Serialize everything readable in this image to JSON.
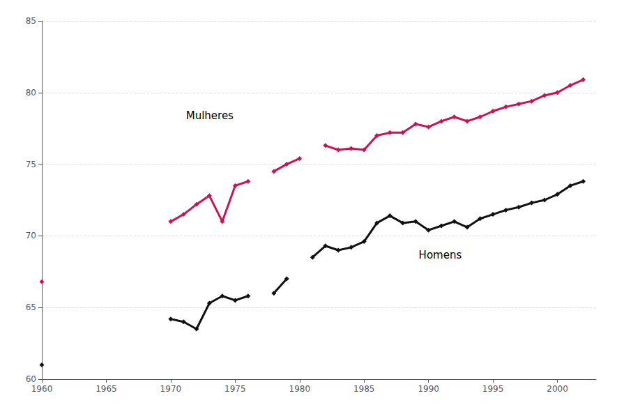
{
  "chart_data": {
    "type": "line",
    "marker": "diamond",
    "series": [
      {
        "name": "Mulheres",
        "color": "#cc1155",
        "x": [
          1960,
          null,
          1970,
          1971,
          1972,
          1973,
          1974,
          1975,
          1976,
          null,
          1978,
          1979,
          1980,
          null,
          1982,
          1983,
          1984,
          1985,
          1986,
          1987,
          1988,
          1989,
          1990,
          1991,
          1992,
          1993,
          1994,
          1995,
          1996,
          1997,
          1998,
          1999,
          2000,
          2001,
          2002
        ],
        "values": [
          66.8,
          null,
          71.0,
          71.5,
          72.2,
          72.8,
          71.0,
          73.5,
          73.8,
          null,
          74.5,
          75.0,
          75.4,
          null,
          76.3,
          76.0,
          76.1,
          76.0,
          77.0,
          77.2,
          77.2,
          77.8,
          77.6,
          78.0,
          78.3,
          78.0,
          78.3,
          78.7,
          79.0,
          79.2,
          79.4,
          79.8,
          80.0,
          80.5,
          80.9
        ]
      },
      {
        "name": "Homens",
        "color": "#111111",
        "x": [
          1960,
          null,
          1970,
          1971,
          1972,
          1973,
          1974,
          1975,
          1976,
          null,
          1978,
          1979,
          null,
          1981,
          1982,
          1983,
          1984,
          1985,
          1986,
          1987,
          1988,
          1989,
          1990,
          1991,
          1992,
          1993,
          1994,
          1995,
          1996,
          1997,
          1998,
          1999,
          2000,
          2001,
          2002
        ],
        "values": [
          61.0,
          null,
          64.2,
          64.0,
          63.5,
          65.3,
          65.8,
          65.5,
          65.8,
          null,
          66.0,
          67.0,
          null,
          68.5,
          69.3,
          69.0,
          69.2,
          69.6,
          70.9,
          71.4,
          70.9,
          71.0,
          70.4,
          70.7,
          71.0,
          70.6,
          71.2,
          71.5,
          71.8,
          72.0,
          72.3,
          72.5,
          72.9,
          73.5,
          73.8
        ]
      }
    ],
    "xlim": [
      1960,
      2003
    ],
    "xticks": [
      1960,
      1965,
      1970,
      1975,
      1980,
      1985,
      1990,
      1995,
      2000
    ],
    "ylim": [
      60,
      85
    ],
    "yticks": [
      60,
      65,
      70,
      75,
      80,
      85
    ],
    "grid": true
  }
}
